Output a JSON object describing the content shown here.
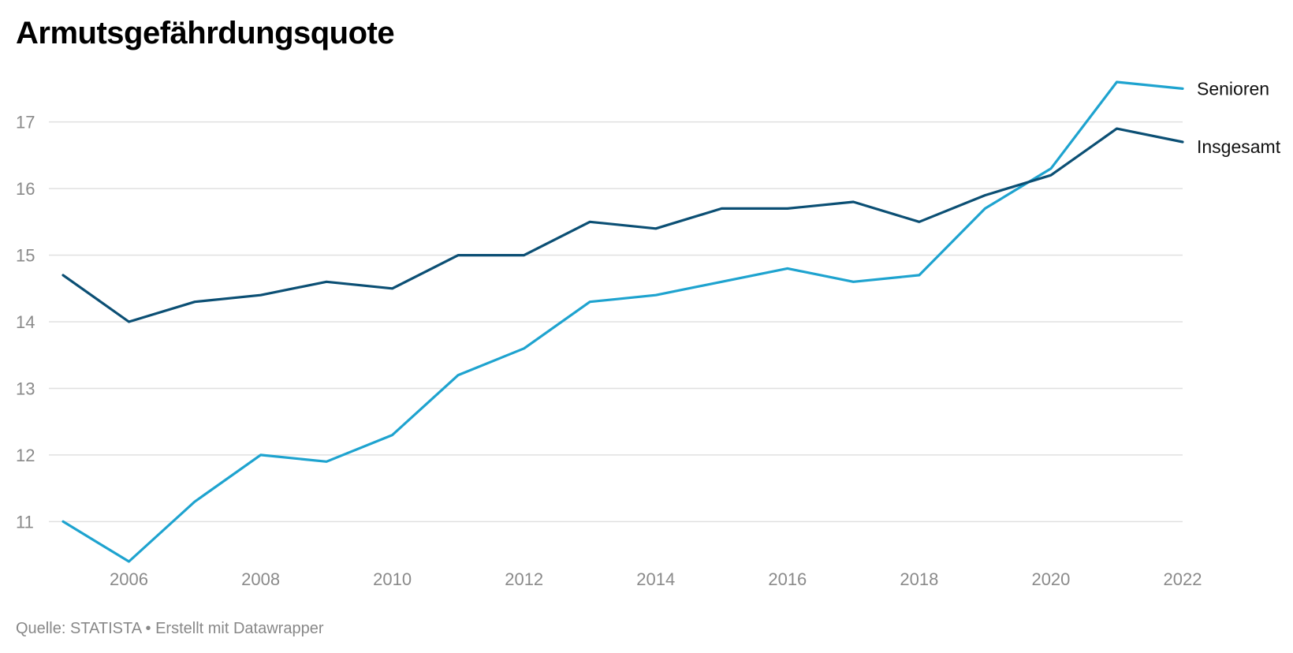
{
  "title": "Armutsgefährdungsquote",
  "footer": {
    "source_label": "Quelle:",
    "source": "STATISTA",
    "separator": "•",
    "credit": "Erstellt mit Datawrapper"
  },
  "chart_data": {
    "type": "line",
    "title": "Armutsgefährdungsquote",
    "xlabel": "",
    "ylabel": "",
    "x": [
      2005,
      2006,
      2007,
      2008,
      2009,
      2010,
      2011,
      2012,
      2013,
      2014,
      2015,
      2016,
      2017,
      2018,
      2019,
      2020,
      2021,
      2022
    ],
    "xlim": [
      2005,
      2022
    ],
    "ylim": [
      10.4,
      17.6
    ],
    "x_ticks": [
      2006,
      2008,
      2010,
      2012,
      2014,
      2016,
      2018,
      2020,
      2022
    ],
    "y_ticks": [
      11,
      12,
      13,
      14,
      15,
      16,
      17
    ],
    "grid": "horizontal",
    "legend": "direct labels at line ends (right)",
    "series": [
      {
        "name": "Senioren",
        "color": "#1ea3cf",
        "values": [
          11.0,
          10.4,
          11.3,
          12.0,
          11.9,
          12.3,
          13.2,
          13.6,
          14.3,
          14.4,
          14.6,
          14.8,
          14.6,
          14.7,
          15.7,
          16.3,
          17.6,
          17.5
        ]
      },
      {
        "name": "Insgesamt",
        "color": "#0b4f74",
        "values": [
          14.7,
          14.0,
          14.3,
          14.4,
          14.6,
          14.5,
          15.0,
          15.0,
          15.5,
          15.4,
          15.7,
          15.7,
          15.8,
          15.5,
          15.9,
          16.2,
          16.9,
          16.7
        ]
      }
    ]
  }
}
